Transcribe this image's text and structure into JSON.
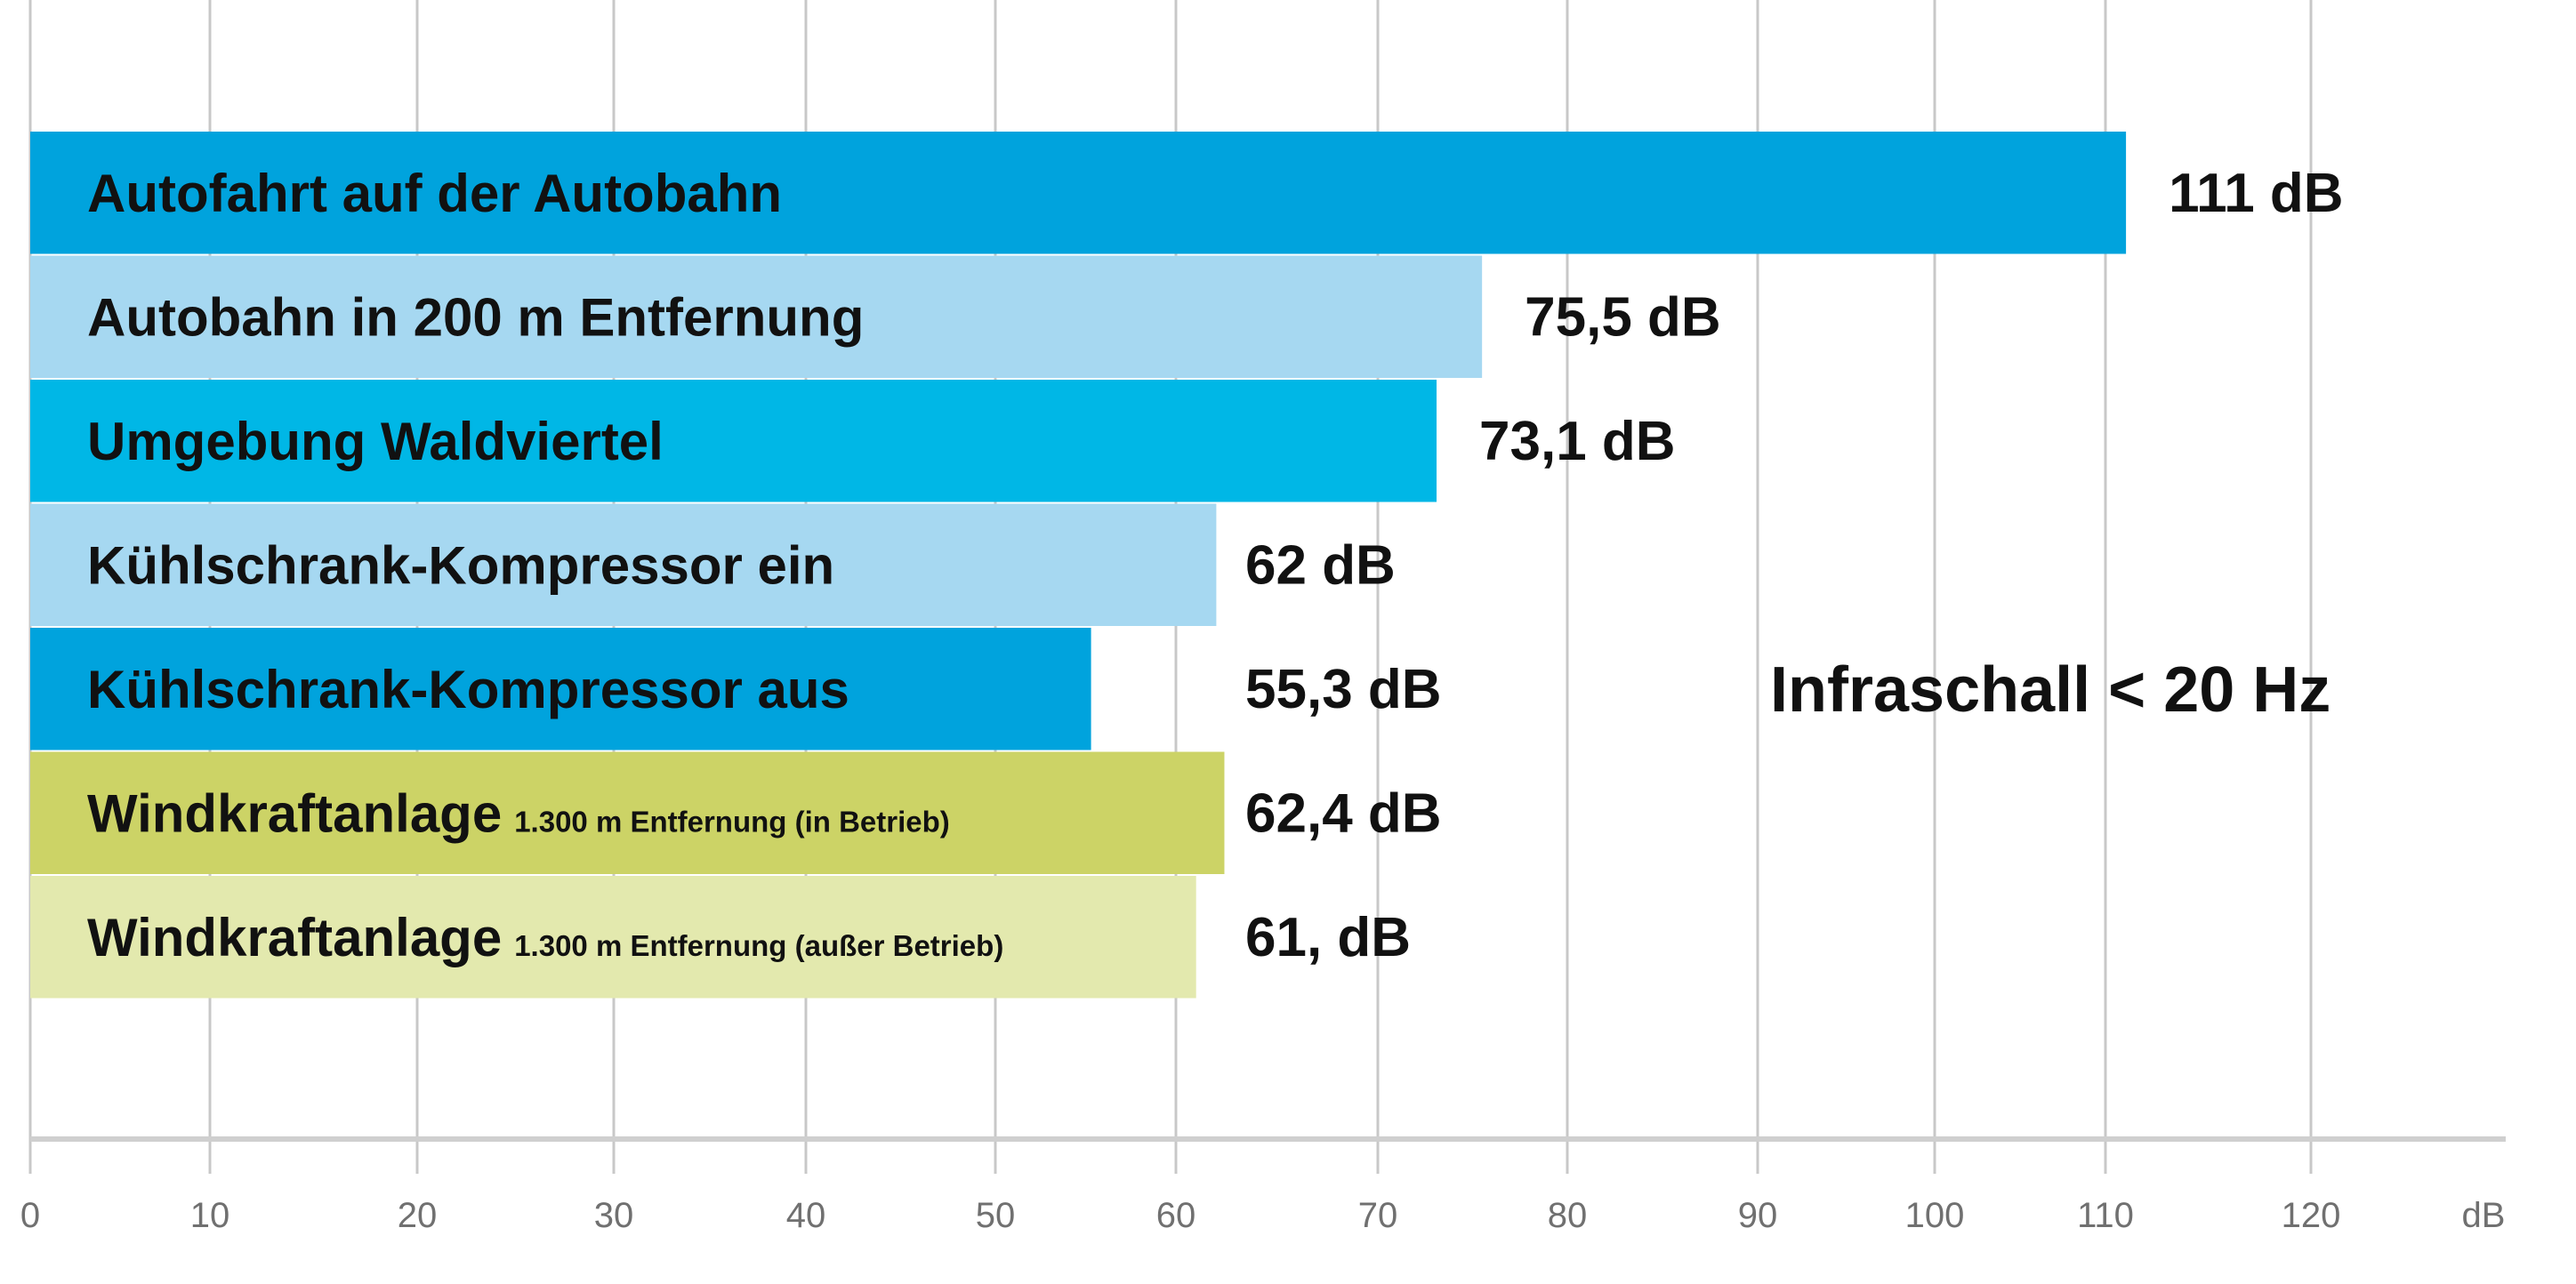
{
  "chart_data": {
    "type": "bar",
    "orientation": "horizontal",
    "title": "",
    "xlabel": "dB",
    "ylabel": "",
    "xlim": [
      0,
      120
    ],
    "grid": true,
    "x_ticks": [
      "0",
      "10",
      "20",
      "30",
      "40",
      "50",
      "60",
      "70",
      "80",
      "90",
      "100",
      "110",
      "120"
    ],
    "axis_unit_label": "dB",
    "annotation": "Infraschall < 20 Hz",
    "categories": [
      {
        "label": "Autofahrt auf der Autobahn",
        "sublabel": "",
        "value": 111,
        "value_label": "111 dB",
        "color": "#00a3dd"
      },
      {
        "label": "Autobahn in 200 m Entfernung",
        "sublabel": "",
        "value": 75.5,
        "value_label": "75,5 dB",
        "color": "#a6d8f1"
      },
      {
        "label": "Umgebung Waldviertel",
        "sublabel": "",
        "value": 73.1,
        "value_label": "73,1 dB",
        "color": "#00b7e6"
      },
      {
        "label": "Kühlschrank-Kompressor ein",
        "sublabel": "",
        "value": 62,
        "value_label": "62 dB",
        "color": "#a6d8f1"
      },
      {
        "label": "Kühlschrank-Kompressor aus",
        "sublabel": "",
        "value": 55.3,
        "value_label": "55,3 dB",
        "color": "#00a3dd"
      },
      {
        "label": "Windkraftanlage",
        "sublabel": "1.300 m Entfernung (in Betrieb)",
        "value": 62.4,
        "value_label": "62,4 dB",
        "color": "#ccd366"
      },
      {
        "label": "Windkraftanlage",
        "sublabel": "1.300 m Entfernung (außer Betrieb)",
        "value": 61,
        "value_label": "61, dB",
        "color": "#e3e9ae"
      }
    ],
    "colors": {
      "grid": "#c8c8c8",
      "axis": "#cfcfcf",
      "tick_text": "#707070",
      "text": "#111111"
    }
  }
}
